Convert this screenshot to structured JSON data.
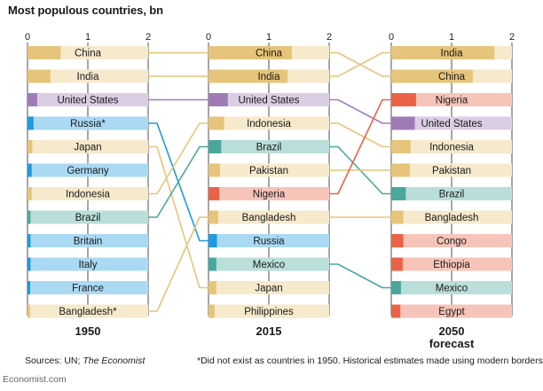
{
  "title": "Most populous countries, bn",
  "footer": {
    "sources_prefix": "Sources: UN; ",
    "sources_italic": "The Economist",
    "note": "*Did not exist as countries in 1950. Historical estimates made using modern borders",
    "brand": "Economist.com"
  },
  "chart_data": {
    "type": "bar",
    "title": "Most populous countries, bn",
    "xlim": [
      0,
      2
    ],
    "ticks": [
      "0",
      "1",
      "2"
    ],
    "colors": {
      "China": "#e6c47a",
      "India": "#e6c47a",
      "United States": "#9f7bb5",
      "Russia": "#1e9ae0",
      "Japan": "#e6c47a",
      "Germany": "#1e9ae0",
      "Indonesia": "#e6c47a",
      "Brazil": "#4aa79b",
      "Britain": "#1e9ae0",
      "Italy": "#1e9ae0",
      "France": "#1e9ae0",
      "Bangladesh": "#e6c47a",
      "Pakistan": "#e6c47a",
      "Nigeria": "#ea6347",
      "Mexico": "#4aa79b",
      "Philippines": "#e6c47a",
      "Congo": "#ea6347",
      "Ethiopia": "#ea6347",
      "Egypt": "#ea6347"
    },
    "panels": [
      {
        "label": "1950",
        "sublabel": "",
        "countries": [
          "China",
          "India",
          "United States",
          "Russia",
          "Japan",
          "Germany",
          "Indonesia",
          "Brazil",
          "Britain",
          "Italy",
          "France",
          "Bangladesh"
        ],
        "labels": [
          "China",
          "India",
          "United States",
          "Russia*",
          "Japan",
          "Germany",
          "Indonesia",
          "Brazil",
          "Britain",
          "Italy",
          "France",
          "Bangladesh*"
        ],
        "values": [
          0.55,
          0.38,
          0.16,
          0.1,
          0.08,
          0.07,
          0.07,
          0.05,
          0.05,
          0.05,
          0.04,
          0.04
        ]
      },
      {
        "label": "2015",
        "sublabel": "",
        "countries": [
          "China",
          "India",
          "United States",
          "Indonesia",
          "Brazil",
          "Pakistan",
          "Nigeria",
          "Bangladesh",
          "Russia",
          "Mexico",
          "Japan",
          "Philippines"
        ],
        "labels": [
          "China",
          "India",
          "United States",
          "Indonesia",
          "Brazil",
          "Pakistan",
          "Nigeria",
          "Bangladesh",
          "Russia",
          "Mexico",
          "Japan",
          "Philippines"
        ],
        "values": [
          1.38,
          1.31,
          0.32,
          0.26,
          0.21,
          0.19,
          0.18,
          0.16,
          0.14,
          0.13,
          0.13,
          0.1
        ]
      },
      {
        "label": "2050",
        "sublabel": "forecast",
        "countries": [
          "India",
          "China",
          "Nigeria",
          "United States",
          "Indonesia",
          "Pakistan",
          "Brazil",
          "Bangladesh",
          "Congo",
          "Ethiopia",
          "Mexico",
          "Egypt"
        ],
        "labels": [
          "India",
          "China",
          "Nigeria",
          "United States",
          "Indonesia",
          "Pakistan",
          "Brazil",
          "Bangladesh",
          "Congo",
          "Ethiopia",
          "Mexico",
          "Egypt"
        ],
        "values": [
          1.71,
          1.35,
          0.41,
          0.39,
          0.32,
          0.31,
          0.24,
          0.2,
          0.2,
          0.19,
          0.16,
          0.15
        ]
      }
    ]
  }
}
